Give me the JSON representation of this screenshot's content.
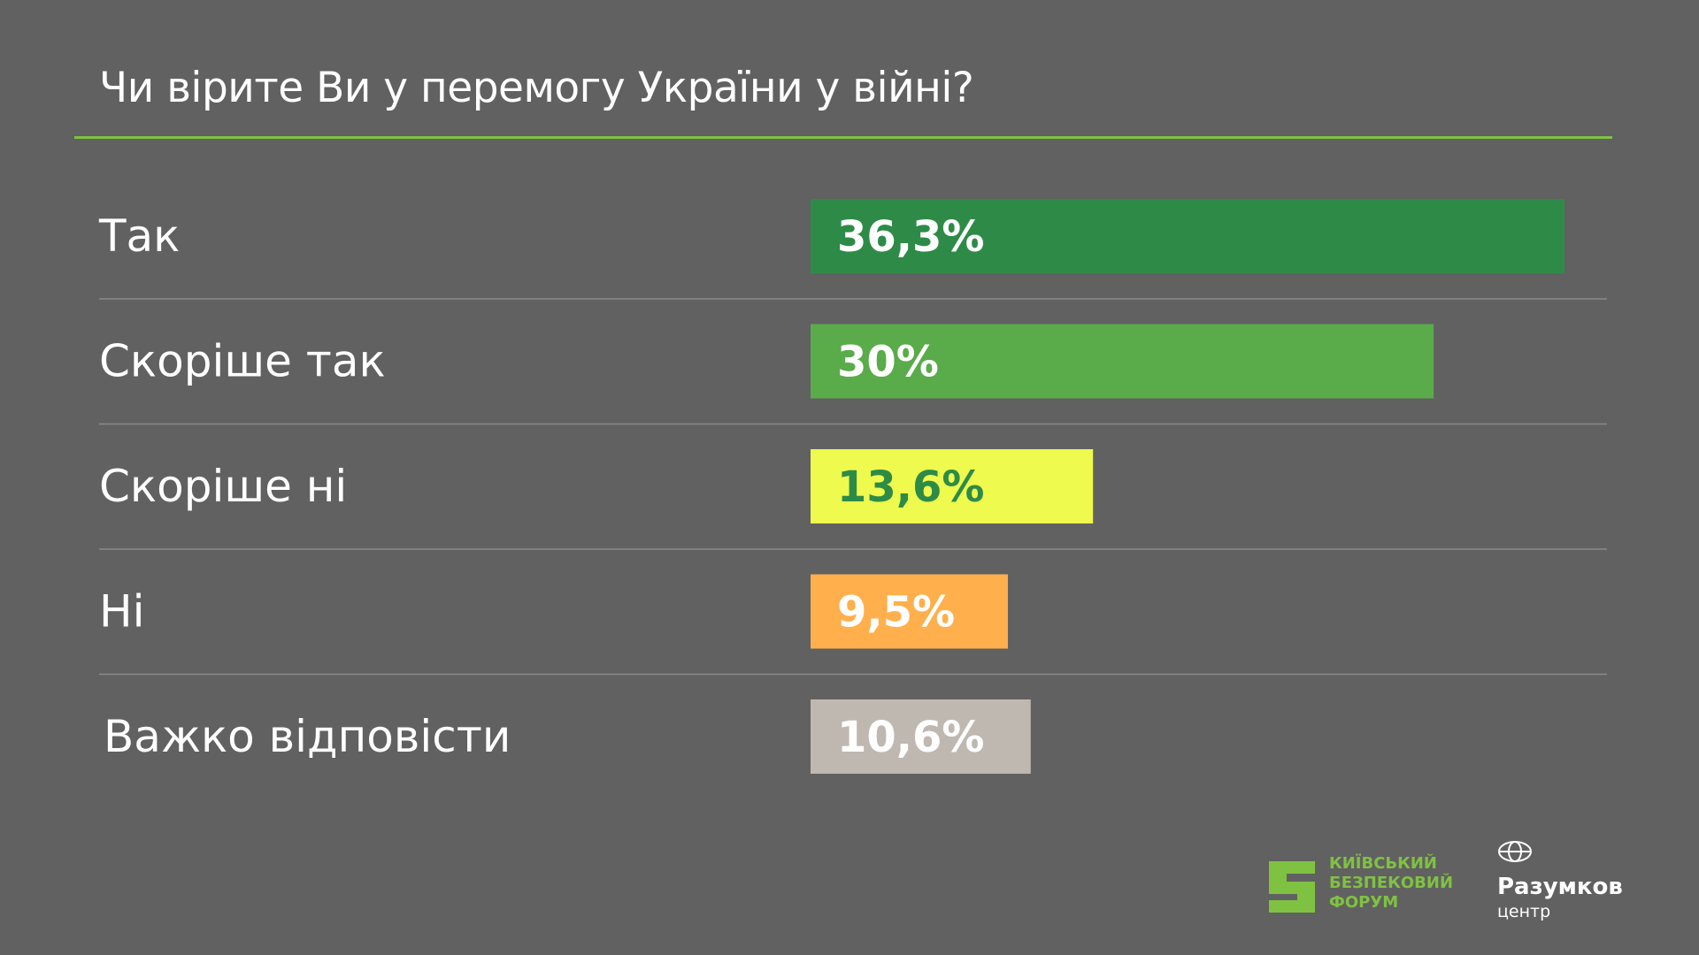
{
  "chart_data": {
    "type": "bar",
    "orientation": "horizontal",
    "title": "Чи вірите Ви у перемогу України у війні?",
    "categories": [
      "Так",
      "Скоріше так",
      "Скоріше ні",
      "Ні",
      "Важко відповісти"
    ],
    "values": [
      36.3,
      30,
      13.6,
      9.5,
      10.6
    ],
    "value_labels": [
      "36,3%",
      "30%",
      "13,6%",
      "9,5%",
      "10,6%"
    ],
    "colors": [
      "#2e8b47",
      "#5aab4a",
      "#eefa4e",
      "#ffb04c",
      "#bfb8b0"
    ],
    "value_label_colors": [
      "#ffffff",
      "#ffffff",
      "#2e8b47",
      "#ffffff",
      "#ffffff"
    ],
    "xlim": [
      0,
      36.3
    ],
    "grid": false,
    "legend": "none"
  },
  "logos": {
    "kbf": [
      "КИЇВСЬКИЙ",
      "БЕЗПЕКОВИЙ",
      "ФОРУМ"
    ],
    "razumkov_name": "Разумков",
    "razumkov_sub": "центр"
  },
  "colors": {
    "background": "#616161",
    "accent": "#7fc241"
  }
}
